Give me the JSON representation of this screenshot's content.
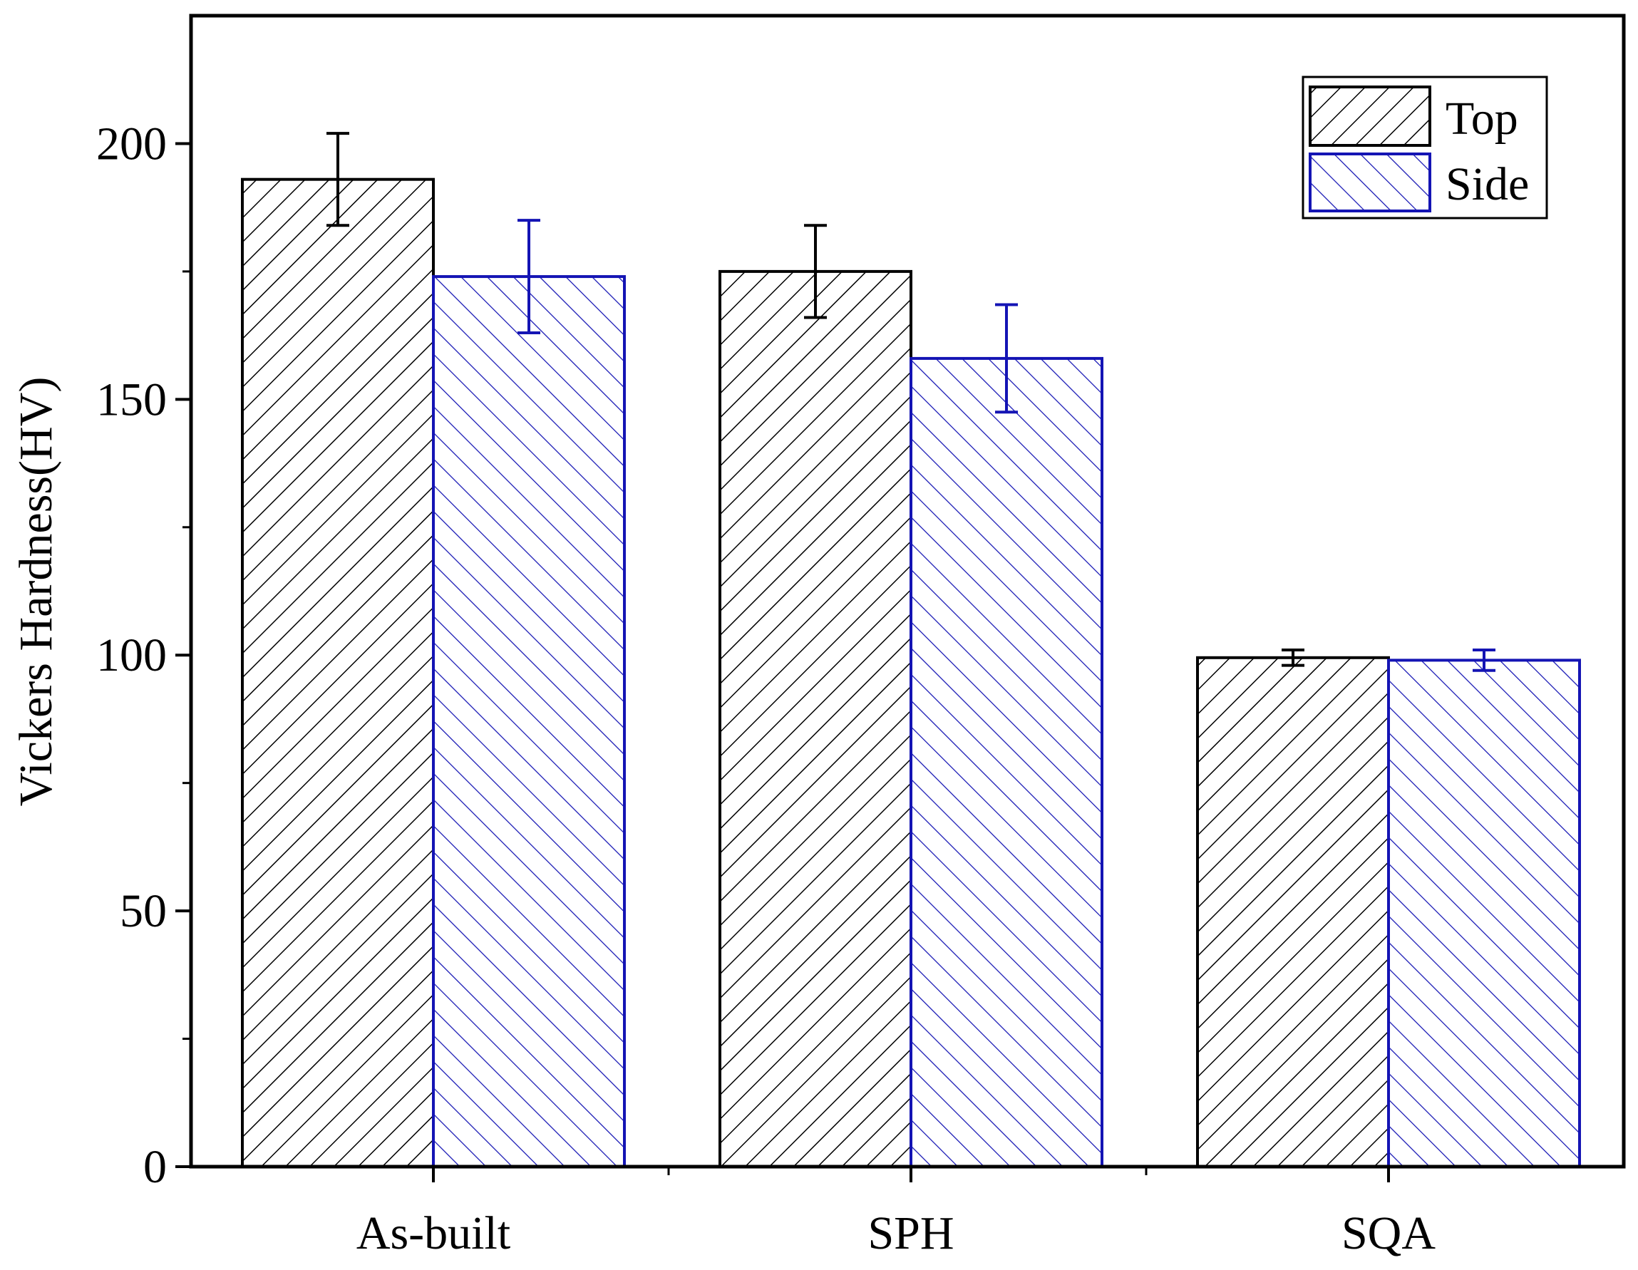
{
  "chart_data": {
    "type": "bar",
    "categories": [
      "As-built",
      "SPH",
      "SQA"
    ],
    "series": [
      {
        "name": "Top",
        "values": [
          193,
          175,
          99.5
        ],
        "errors": [
          9,
          9,
          1.5
        ],
        "color": "#000000",
        "pattern": "diagonal-up"
      },
      {
        "name": "Side",
        "values": [
          174,
          158,
          99
        ],
        "errors": [
          11,
          10.5,
          2
        ],
        "color": "#1414b4",
        "pattern": "diagonal-down"
      }
    ],
    "ylabel": "Vickers Hardness(HV)",
    "xlabel": "",
    "ylim": [
      0,
      225
    ],
    "yticks": [
      0,
      50,
      100,
      150,
      200
    ],
    "yticks_minor": [
      25,
      75,
      125,
      175
    ],
    "grid": false,
    "legend_position": "top-right",
    "error_bars": true
  }
}
